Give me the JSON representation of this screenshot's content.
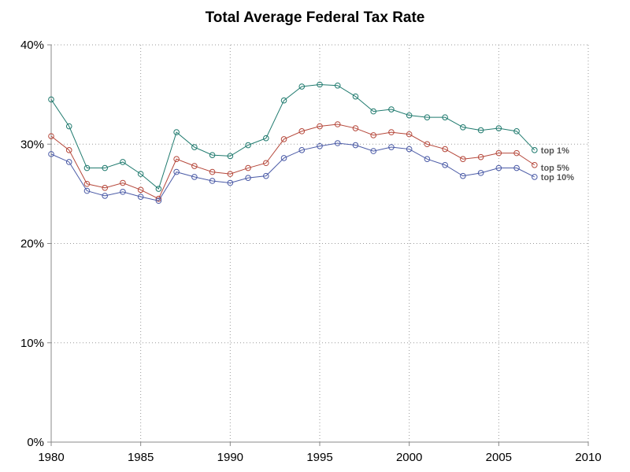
{
  "chart_data": {
    "type": "line",
    "title": "Total Average Federal Tax Rate",
    "xlabel": "",
    "ylabel": "",
    "xlim": [
      1980,
      2010
    ],
    "ylim": [
      0,
      40
    ],
    "x_ticks": [
      1980,
      1985,
      1990,
      1995,
      2000,
      2005,
      2010
    ],
    "x_tick_labels": [
      "1980",
      "1985",
      "1990",
      "1995",
      "2000",
      "2005",
      "2010"
    ],
    "y_ticks": [
      0,
      10,
      20,
      30,
      40
    ],
    "y_tick_labels": [
      "0%",
      "10%",
      "20%",
      "30%",
      "40%"
    ],
    "grid": true,
    "legend": "direct labels at line ends",
    "x": [
      1980,
      1981,
      1982,
      1983,
      1984,
      1985,
      1986,
      1987,
      1988,
      1989,
      1990,
      1991,
      1992,
      1993,
      1994,
      1995,
      1996,
      1997,
      1998,
      1999,
      2000,
      2001,
      2002,
      2003,
      2004,
      2005,
      2006,
      2007
    ],
    "series": [
      {
        "name": "top 1%",
        "color": "#1f7a6e",
        "values": [
          34.5,
          31.8,
          27.6,
          27.6,
          28.2,
          27.0,
          25.5,
          31.2,
          29.7,
          28.9,
          28.8,
          29.9,
          30.6,
          34.4,
          35.8,
          36.0,
          35.9,
          34.8,
          33.3,
          33.5,
          32.9,
          32.7,
          32.7,
          31.7,
          31.4,
          31.6,
          31.3,
          29.4
        ]
      },
      {
        "name": "top 5%",
        "color": "#b5473a",
        "values": [
          30.8,
          29.4,
          26.0,
          25.6,
          26.1,
          25.4,
          24.5,
          28.5,
          27.8,
          27.2,
          27.0,
          27.6,
          28.1,
          30.5,
          31.3,
          31.8,
          32.0,
          31.6,
          30.9,
          31.2,
          31.0,
          30.0,
          29.5,
          28.5,
          28.7,
          29.1,
          29.1,
          27.9
        ]
      },
      {
        "name": "top 10%",
        "color": "#4a5aa6",
        "values": [
          29.0,
          28.2,
          25.3,
          24.8,
          25.2,
          24.7,
          24.3,
          27.2,
          26.7,
          26.3,
          26.1,
          26.6,
          26.8,
          28.6,
          29.4,
          29.8,
          30.1,
          29.9,
          29.3,
          29.7,
          29.5,
          28.5,
          27.9,
          26.8,
          27.1,
          27.6,
          27.6,
          26.7
        ]
      }
    ]
  }
}
